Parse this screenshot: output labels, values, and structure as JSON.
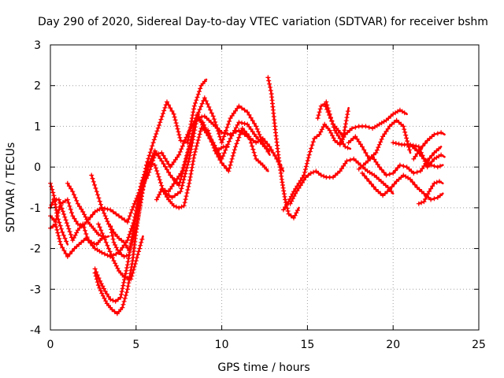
{
  "chart_data": {
    "type": "scatter",
    "title": "Day 290 of 2020, Sidereal Day-to-day VTEC variation (SDTVAR) for receiver bshm",
    "xlabel": "GPS time / hours",
    "ylabel": "SDTVAR / TECUs",
    "xlim": [
      0,
      25
    ],
    "ylim": [
      -4,
      3
    ],
    "xticks": [
      0,
      5,
      10,
      15,
      20,
      25
    ],
    "yticks": [
      -4,
      -3,
      -2,
      -1,
      0,
      1,
      2,
      3
    ],
    "grid": true,
    "marker": "+",
    "color": "#ff0000",
    "series": [
      {
        "x": [
          0,
          0.3,
          0.6,
          1.0,
          1.4,
          1.8,
          2.1,
          2.4,
          2.7,
          3.0,
          3.4
        ],
        "y": [
          -1.5,
          -1.4,
          -1.9,
          -2.2,
          -2.0,
          -1.85,
          -1.75,
          -1.85,
          -1.9,
          -1.75,
          -1.7
        ]
      },
      {
        "x": [
          0,
          0.2,
          0.4,
          0.7,
          1.0
        ],
        "y": [
          -0.4,
          -0.7,
          -1.2,
          -1.6,
          -1.9
        ]
      },
      {
        "x": [
          0,
          0.2,
          0.5,
          0.9,
          1.3,
          1.6,
          1.9,
          2.2,
          2.6,
          3.0,
          3.5,
          4.0,
          4.5,
          4.9,
          5.3,
          5.7,
          6.1,
          6.6,
          7.1,
          7.6,
          8.1,
          8.6,
          9.0,
          9.5,
          10.0,
          10.5,
          11.0,
          11.5,
          12.0,
          12.5,
          12.8
        ],
        "y": [
          -1.0,
          -0.8,
          -0.8,
          -1.3,
          -1.8,
          -1.55,
          -1.4,
          -1.8,
          -2.0,
          -2.1,
          -2.2,
          -2.1,
          -1.8,
          -1.3,
          -0.4,
          0.1,
          0.05,
          -0.6,
          -0.75,
          -0.6,
          0.2,
          1.3,
          0.9,
          0.6,
          0.2,
          0.7,
          1.1,
          1.05,
          0.75,
          0.5,
          0.4
        ]
      },
      {
        "x": [
          0,
          0.3,
          0.6,
          1.0,
          1.3,
          1.6,
          1.9,
          2.2,
          2.6,
          3.0,
          3.5,
          4.0,
          4.5,
          4.9,
          5.3,
          5.7,
          6.1,
          6.5,
          7.0,
          7.5,
          8.0,
          8.5,
          9.0,
          9.5,
          10.0,
          10.5,
          11.0,
          11.5,
          12.0,
          12.4,
          12.8,
          13.2,
          13.6
        ],
        "y": [
          -1.2,
          -1.35,
          -0.9,
          -0.8,
          -1.2,
          -1.4,
          -1.45,
          -1.3,
          -1.1,
          -1.0,
          -1.05,
          -1.2,
          -1.35,
          -0.9,
          -0.5,
          -0.2,
          0.3,
          0.35,
          0.0,
          0.3,
          0.8,
          1.2,
          1.25,
          1.05,
          0.85,
          0.8,
          0.9,
          0.75,
          0.6,
          0.7,
          0.5,
          0.2,
          -0.1
        ]
      },
      {
        "x": [
          1.0,
          1.3,
          1.6,
          1.9,
          2.2,
          2.5,
          2.8,
          3.0
        ],
        "y": [
          -0.4,
          -0.6,
          -0.9,
          -1.1,
          -1.35,
          -1.5,
          -1.65,
          -1.7
        ]
      },
      {
        "x": [
          2.4,
          2.7,
          3.0,
          3.4,
          3.7,
          4.0,
          4.3,
          4.6,
          5.0,
          5.3,
          5.6,
          6.0,
          6.4,
          6.8,
          7.2,
          7.6,
          8.0,
          8.4,
          8.8,
          9.1
        ],
        "y": [
          -0.2,
          -0.6,
          -1.0,
          -1.4,
          -1.6,
          -1.75,
          -1.85,
          -2.05,
          -1.5,
          -0.8,
          0.05,
          0.6,
          1.1,
          1.6,
          1.3,
          0.65,
          0.6,
          1.5,
          2.0,
          2.15
        ]
      },
      {
        "x": [
          2.6,
          2.8,
          3.0,
          3.3,
          3.6,
          3.9,
          4.2,
          4.5,
          4.8,
          5.0,
          5.3,
          5.7,
          6.1,
          6.5,
          7.0,
          7.5,
          8.0,
          8.5,
          9.0,
          9.5,
          10.0,
          10.5,
          11.0,
          11.5,
          12.0,
          12.4,
          12.8
        ],
        "y": [
          -2.6,
          -2.9,
          -3.1,
          -3.35,
          -3.5,
          -3.6,
          -3.45,
          -3.0,
          -2.3,
          -1.6,
          -0.7,
          0.0,
          0.4,
          0.15,
          -0.2,
          -0.45,
          0.3,
          1.2,
          1.7,
          1.25,
          0.6,
          1.2,
          1.5,
          1.35,
          1.0,
          0.6,
          0.3
        ]
      },
      {
        "x": [
          2.6,
          2.9,
          3.2,
          3.5,
          3.8,
          4.1,
          4.5,
          4.9,
          5.3,
          5.7,
          6.1
        ],
        "y": [
          -2.5,
          -2.8,
          -3.05,
          -3.25,
          -3.3,
          -3.2,
          -2.4,
          -1.4,
          -0.6,
          0.0,
          0.3
        ]
      },
      {
        "x": [
          2.8,
          3.1,
          3.4,
          3.7,
          4.0,
          4.3,
          4.7,
          5.0,
          5.4
        ],
        "y": [
          -1.4,
          -1.7,
          -2.0,
          -2.3,
          -2.55,
          -2.7,
          -2.75,
          -2.3,
          -1.7
        ]
      },
      {
        "x": [
          3.5,
          3.7,
          4.0,
          4.3,
          4.6
        ],
        "y": [
          -1.45,
          -1.85,
          -2.1,
          -2.2,
          -2.15
        ]
      },
      {
        "x": [
          6.2,
          6.5,
          6.9,
          7.3,
          7.7,
          8.1,
          8.5,
          8.9,
          9.3,
          9.7,
          10.1,
          10.4
        ],
        "y": [
          -0.8,
          -0.55,
          -0.6,
          -0.35,
          -0.1,
          0.5,
          1.2,
          1.1,
          0.7,
          0.4,
          0.5,
          0.5
        ]
      },
      {
        "x": [
          6.6,
          6.9,
          7.2,
          7.5,
          7.8,
          8.1,
          8.4,
          8.8,
          9.2,
          9.6,
          10.0,
          10.4,
          10.8,
          11.2,
          11.6,
          12.0,
          12.4,
          12.7
        ],
        "y": [
          -0.6,
          -0.8,
          -0.95,
          -1.0,
          -0.95,
          -0.4,
          0.3,
          0.95,
          0.9,
          0.4,
          0.1,
          -0.1,
          0.5,
          0.95,
          0.75,
          0.2,
          0.05,
          -0.1
        ]
      },
      {
        "x": [
          12.7,
          12.9,
          13.1,
          13.3,
          13.5,
          13.7,
          13.9,
          14.2,
          14.5
        ],
        "y": [
          2.2,
          1.8,
          1.0,
          0.3,
          -0.3,
          -0.8,
          -1.15,
          -1.25,
          -1.0
        ]
      },
      {
        "x": [
          13.6,
          13.9,
          14.2,
          14.5,
          14.8,
          15.1,
          15.4,
          15.7,
          16.0,
          16.3,
          16.6,
          16.9,
          17.2,
          17.6,
          18.0,
          18.4,
          18.8,
          19.2,
          19.6,
          20.0,
          20.4,
          20.8
        ],
        "y": [
          -1.05,
          -0.85,
          -0.6,
          -0.4,
          -0.2,
          0.3,
          0.7,
          0.8,
          1.05,
          0.9,
          0.65,
          0.55,
          0.8,
          0.95,
          1.0,
          1.0,
          0.95,
          1.05,
          1.15,
          1.3,
          1.4,
          1.3
        ]
      },
      {
        "x": [
          14.0,
          14.3,
          14.6,
          14.9,
          15.2,
          15.5,
          15.8,
          16.1,
          16.5,
          16.9,
          17.3,
          17.7,
          18.1,
          18.5,
          18.9,
          19.3,
          19.7,
          20.0
        ],
        "y": [
          -0.9,
          -0.65,
          -0.45,
          -0.25,
          -0.15,
          -0.1,
          -0.2,
          -0.25,
          -0.25,
          -0.1,
          0.15,
          0.2,
          0.05,
          -0.1,
          -0.2,
          -0.35,
          -0.5,
          -0.65
        ]
      },
      {
        "x": [
          15.6,
          15.8,
          16.0,
          16.2,
          16.5,
          16.8,
          17.1,
          17.4
        ],
        "y": [
          1.2,
          1.5,
          1.55,
          1.35,
          1.05,
          0.9,
          0.75,
          1.45
        ]
      },
      {
        "x": [
          16.1,
          16.3,
          16.6,
          16.9,
          17.2,
          17.5
        ],
        "y": [
          1.6,
          1.3,
          0.9,
          0.7,
          0.5,
          0.45
        ]
      },
      {
        "x": [
          17.4,
          17.8,
          18.2,
          18.6,
          19.0,
          19.4,
          19.8,
          20.2,
          20.6,
          21.0
        ],
        "y": [
          0.6,
          0.75,
          0.5,
          0.2,
          0.35,
          0.75,
          1.0,
          1.15,
          1.0,
          0.35
        ]
      },
      {
        "x": [
          18.0,
          18.4,
          18.8,
          19.2,
          19.6,
          20.0,
          20.4,
          20.8,
          21.2,
          21.6,
          22.0,
          22.4,
          22.8
        ],
        "y": [
          -0.05,
          0.1,
          0.25,
          0.0,
          -0.2,
          -0.15,
          0.05,
          0.0,
          -0.15,
          -0.1,
          0.15,
          0.35,
          0.5
        ]
      },
      {
        "x": [
          18.2,
          18.6,
          19.0,
          19.4,
          19.8,
          20.2,
          20.6,
          21.0,
          21.4,
          21.8,
          22.2,
          22.6,
          22.9
        ],
        "y": [
          -0.15,
          -0.35,
          -0.55,
          -0.7,
          -0.55,
          -0.35,
          -0.2,
          -0.3,
          -0.5,
          -0.65,
          -0.8,
          -0.75,
          -0.65
        ]
      },
      {
        "x": [
          20.0,
          20.5,
          21.0,
          21.5,
          22.0,
          22.4,
          22.8,
          23.0
        ],
        "y": [
          0.6,
          0.55,
          0.55,
          0.5,
          0.0,
          0.2,
          0.3,
          0.25
        ]
      },
      {
        "x": [
          21.0,
          21.4,
          21.8,
          22.2,
          22.6,
          22.9
        ],
        "y": [
          0.55,
          0.4,
          0.2,
          0.05,
          0.0,
          0.05
        ]
      },
      {
        "x": [
          21.5,
          21.8,
          22.1,
          22.4,
          22.7,
          22.9
        ],
        "y": [
          -0.9,
          -0.85,
          -0.6,
          -0.4,
          -0.35,
          -0.4
        ]
      },
      {
        "x": [
          21.2,
          21.6,
          22.0,
          22.4,
          22.8,
          23.0
        ],
        "y": [
          0.2,
          0.45,
          0.65,
          0.8,
          0.85,
          0.8
        ]
      }
    ]
  }
}
